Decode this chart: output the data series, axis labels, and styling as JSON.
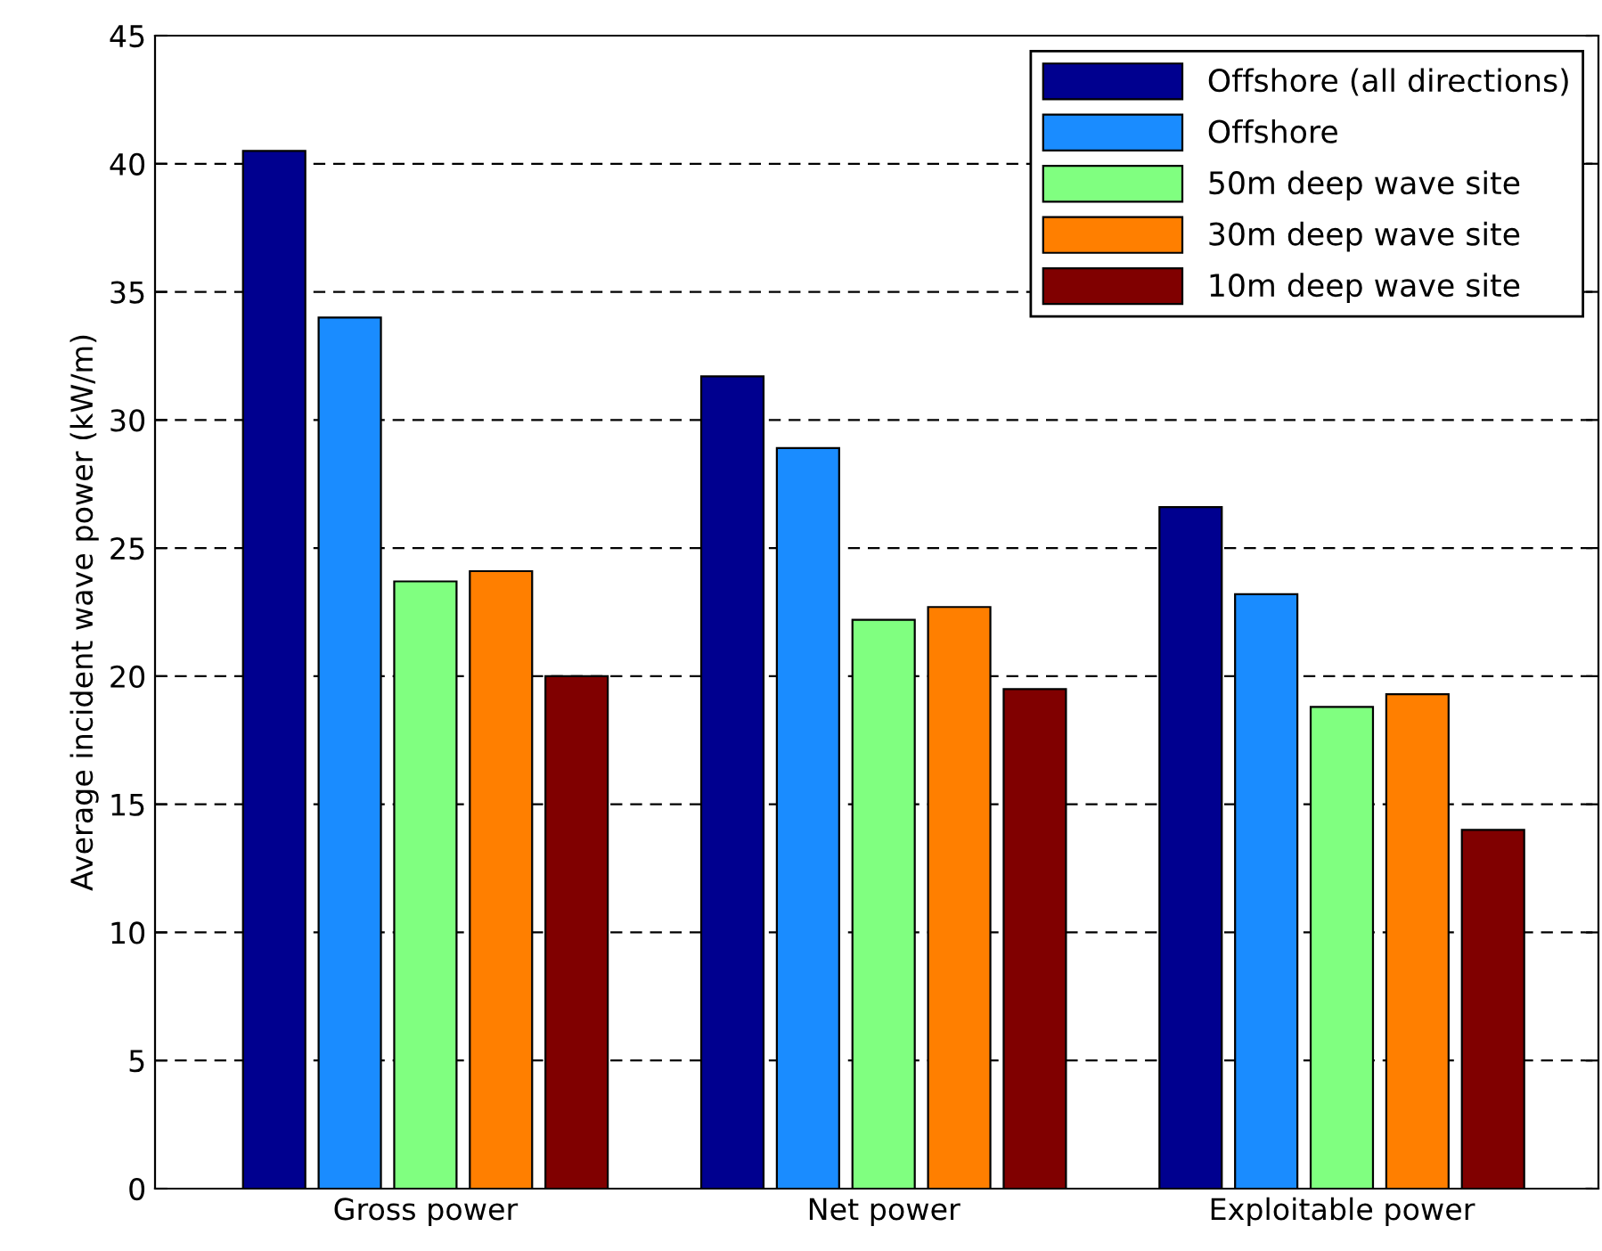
{
  "chart_data": {
    "type": "bar",
    "ylabel": "Average incident wave power (kW/m)",
    "categories": [
      "Gross power",
      "Net power",
      "Exploitable power"
    ],
    "series": [
      {
        "name": "Offshore (all directions)",
        "color": "#00008f",
        "values": [
          40.5,
          31.7,
          26.6
        ]
      },
      {
        "name": "Offshore",
        "color": "#1a8cff",
        "values": [
          34.0,
          28.9,
          23.2
        ]
      },
      {
        "name": "50m deep wave site",
        "color": "#80ff80",
        "values": [
          23.7,
          22.2,
          18.8
        ]
      },
      {
        "name": "30m deep wave site",
        "color": "#ff7f00",
        "values": [
          24.1,
          22.7,
          19.3
        ]
      },
      {
        "name": "10m deep wave site",
        "color": "#800000",
        "values": [
          20.0,
          19.5,
          14.0
        ]
      }
    ],
    "ylim": [
      0,
      45
    ],
    "yticks": [
      0,
      5,
      10,
      15,
      20,
      25,
      30,
      35,
      40,
      45
    ],
    "grid": "y",
    "legend": "top right"
  }
}
